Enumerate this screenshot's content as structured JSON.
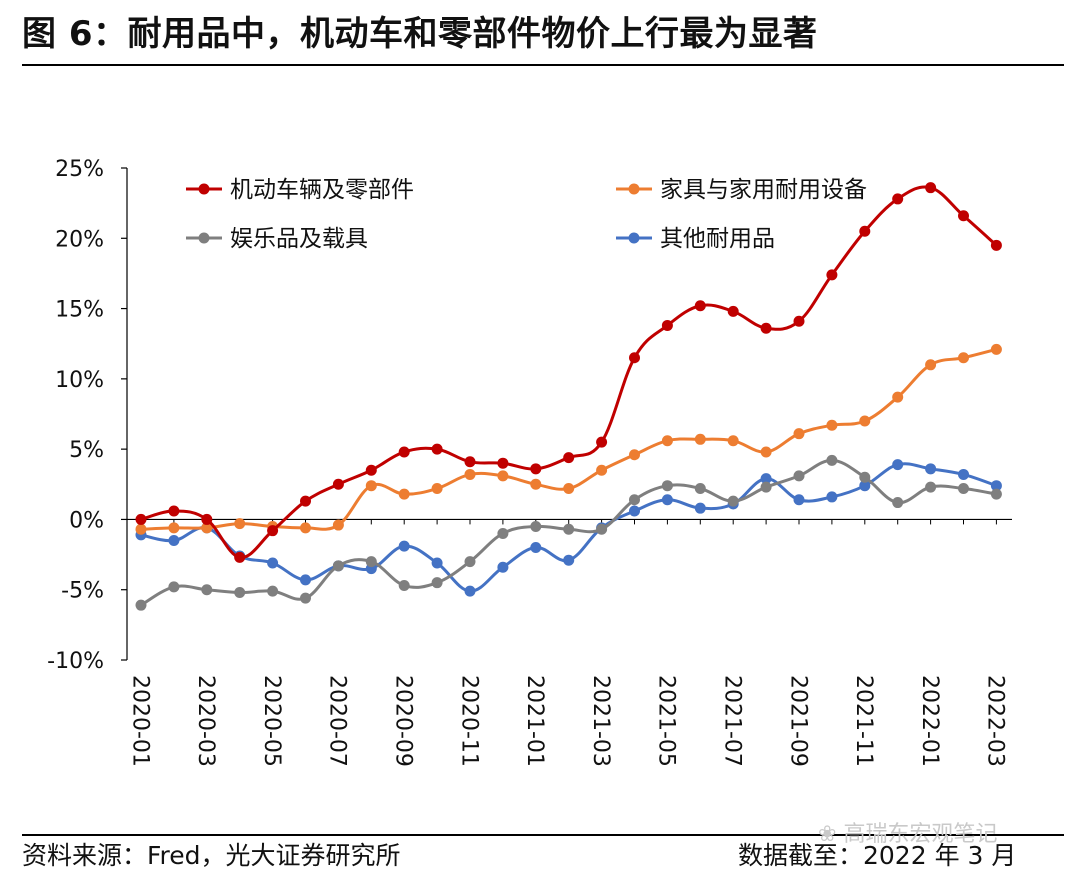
{
  "title": "图 6：耐用品中，机动车和零部件物价上行最为显著",
  "footer": {
    "source": "资料来源：Fred，光大证券研究所",
    "date": "数据截至：2022 年 3 月"
  },
  "watermark": "高瑞东宏观笔记",
  "chart_data": {
    "type": "line",
    "x": [
      "2020-01",
      "2020-02",
      "2020-03",
      "2020-04",
      "2020-05",
      "2020-06",
      "2020-07",
      "2020-08",
      "2020-09",
      "2020-10",
      "2020-11",
      "2020-12",
      "2021-01",
      "2021-02",
      "2021-03",
      "2021-04",
      "2021-05",
      "2021-06",
      "2021-07",
      "2021-08",
      "2021-09",
      "2021-10",
      "2021-11",
      "2021-12",
      "2022-01",
      "2022-02",
      "2022-03"
    ],
    "xticks": [
      "2020-01",
      "2020-03",
      "2020-05",
      "2020-07",
      "2020-09",
      "2020-11",
      "2021-01",
      "2021-03",
      "2021-05",
      "2021-07",
      "2021-09",
      "2021-11",
      "2022-01",
      "2022-03"
    ],
    "yticks": [
      "25%",
      "20%",
      "15%",
      "10%",
      "5%",
      "0%",
      "-5%",
      "-10%"
    ],
    "ylim": [
      -10,
      25
    ],
    "series": [
      {
        "name": "机动车辆及零部件",
        "color": "#c00000",
        "values": [
          0.0,
          0.6,
          0.0,
          -2.7,
          -0.8,
          1.3,
          2.5,
          3.5,
          4.8,
          5.0,
          4.1,
          4.0,
          3.6,
          4.4,
          5.5,
          11.5,
          13.8,
          15.2,
          14.8,
          13.6,
          14.1,
          17.4,
          20.5,
          22.8,
          23.6,
          21.6,
          19.5
        ]
      },
      {
        "name": "家具与家用耐用设备",
        "color": "#ed7d31",
        "values": [
          -0.7,
          -0.6,
          -0.6,
          -0.3,
          -0.5,
          -0.6,
          -0.4,
          2.4,
          1.8,
          2.2,
          3.2,
          3.1,
          2.5,
          2.2,
          3.5,
          4.6,
          5.6,
          5.7,
          5.6,
          4.8,
          6.1,
          6.7,
          7.0,
          8.7,
          11.0,
          11.5,
          12.1
        ]
      },
      {
        "name": "娱乐品及载具",
        "color": "#7f7f7f",
        "values": [
          -6.1,
          -4.8,
          -5.0,
          -5.2,
          -5.1,
          -5.6,
          -3.3,
          -3.0,
          -4.7,
          -4.5,
          -3.0,
          -1.0,
          -0.5,
          -0.7,
          -0.7,
          1.4,
          2.4,
          2.2,
          1.3,
          2.3,
          3.1,
          4.2,
          3.0,
          1.2,
          2.3,
          2.2,
          1.8
        ]
      },
      {
        "name": "其他耐用品",
        "color": "#4472c4",
        "values": [
          -1.1,
          -1.5,
          -0.6,
          -2.6,
          -3.1,
          -4.3,
          -3.3,
          -3.5,
          -1.9,
          -3.1,
          -5.1,
          -3.4,
          -2.0,
          -2.9,
          -0.6,
          0.6,
          1.4,
          0.8,
          1.1,
          2.9,
          1.4,
          1.6,
          2.4,
          3.9,
          3.6,
          3.2,
          2.4
        ]
      }
    ],
    "legend": "top, two columns",
    "grid": false
  }
}
